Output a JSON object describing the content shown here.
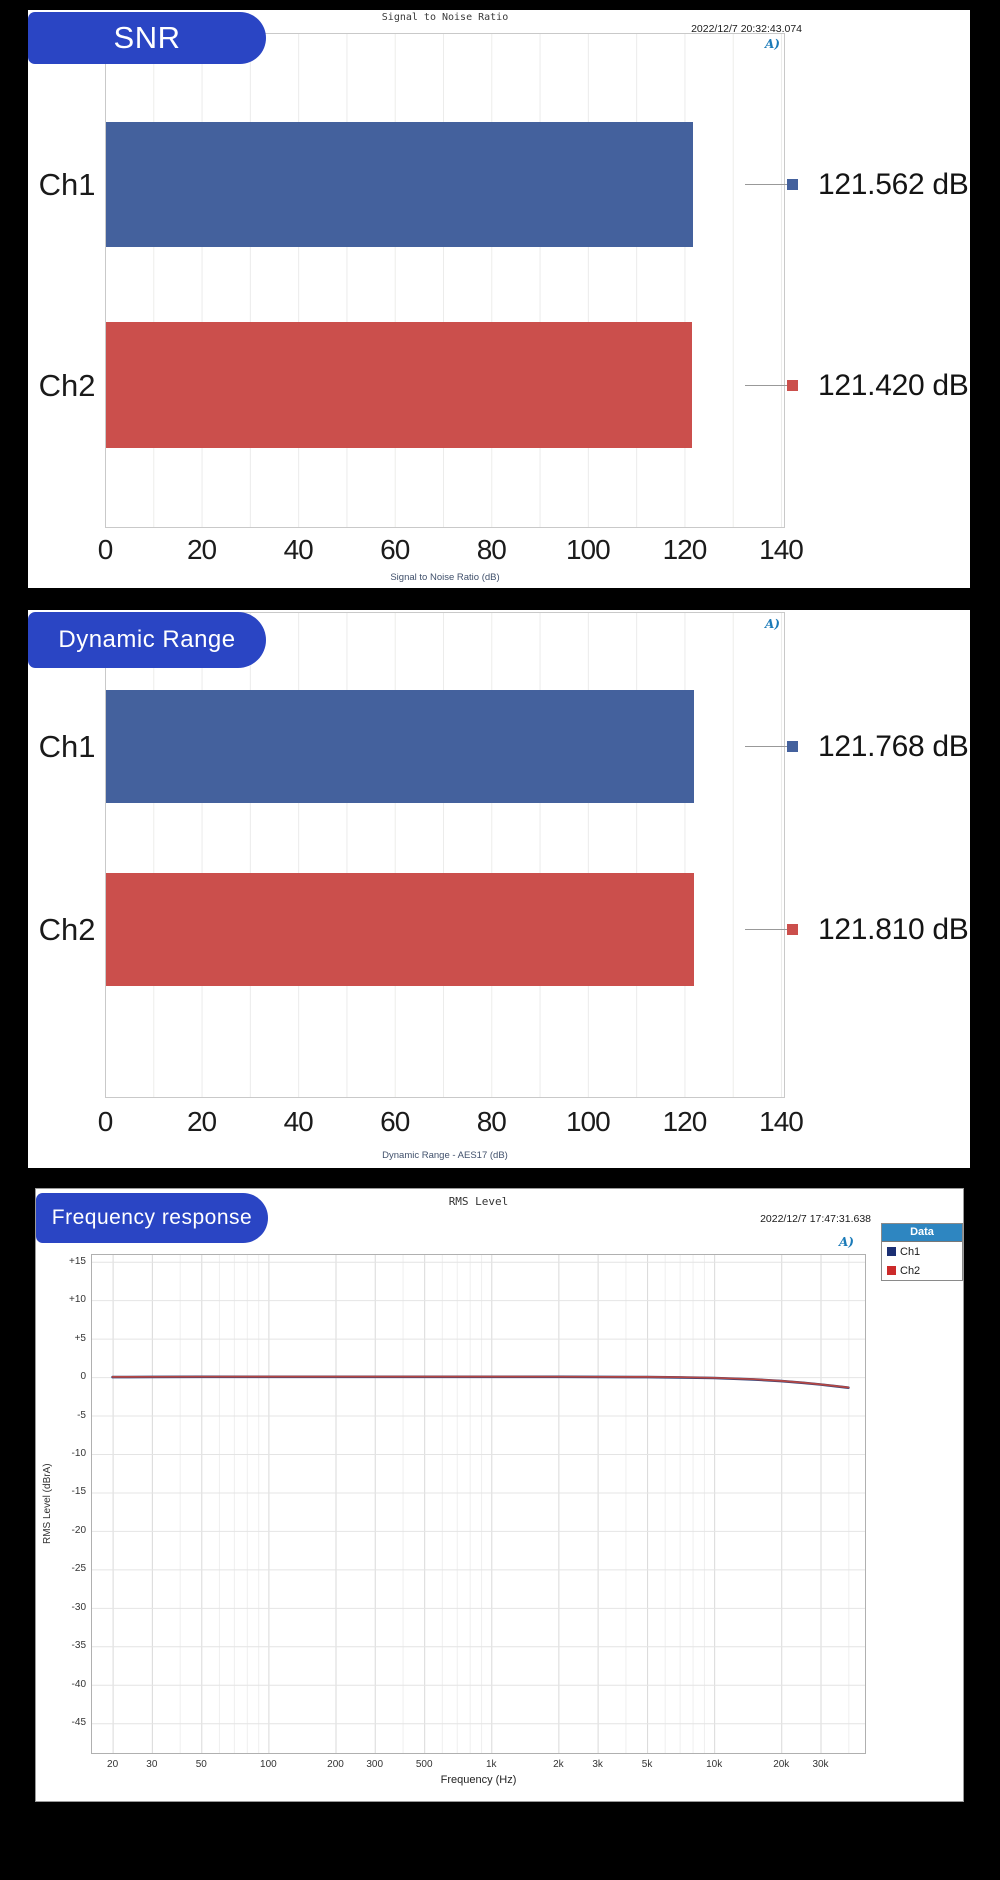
{
  "ui": {
    "logo_text": "A)"
  },
  "colors": {
    "page_background": "#000000",
    "panel_background": "#ffffff",
    "badge_blue": "#2a45c4",
    "bar_blue": "#44619d",
    "bar_red": "#cb4f4c",
    "legend_header_blue": "#2e86c1",
    "grid_line": "#ececeb",
    "plot_border": "#c9c9c9"
  },
  "chart_data": [
    {
      "id": "snr",
      "type": "bar",
      "badge": "SNR",
      "title": "Signal to Noise Ratio",
      "timestamp": "2022/12/7 20:32:43.074",
      "xlabel": "Signal to Noise Ratio (dB)",
      "categories": [
        "Ch1",
        "Ch2"
      ],
      "values": [
        121.562,
        121.42
      ],
      "value_labels": [
        "121.562 dB",
        "121.420 dB"
      ],
      "bar_colors": [
        "#44619d",
        "#cb4f4c"
      ],
      "xlim": [
        0,
        140
      ],
      "xticks": [
        0,
        20,
        40,
        60,
        80,
        100,
        120,
        140
      ],
      "grid_step": 10
    },
    {
      "id": "dynamic_range",
      "type": "bar",
      "badge": "Dynamic Range",
      "xlabel": "Dynamic Range - AES17 (dB)",
      "categories": [
        "Ch1",
        "Ch2"
      ],
      "values": [
        121.768,
        121.81
      ],
      "value_labels": [
        "121.768 dB",
        "121.810 dB"
      ],
      "bar_colors": [
        "#44619d",
        "#cb4f4c"
      ],
      "xlim": [
        0,
        140
      ],
      "xticks": [
        0,
        20,
        40,
        60,
        80,
        100,
        120,
        140
      ],
      "grid_step": 10
    },
    {
      "id": "frequency_response",
      "type": "line",
      "badge": "Frequency response",
      "title": "RMS Level",
      "timestamp": "2022/12/7 17:47:31.638",
      "xlabel": "Frequency (Hz)",
      "ylabel": "RMS Level (dBrA)",
      "x_scale": "log",
      "xlim": [
        16,
        48000
      ],
      "ylim": [
        -49,
        16
      ],
      "ygrid_step": 5,
      "yticks": [
        {
          "v": 15,
          "label": "+15"
        },
        {
          "v": 10,
          "label": "+10"
        },
        {
          "v": 5,
          "label": "+5"
        },
        {
          "v": 0,
          "label": "0"
        },
        {
          "v": -5,
          "label": "-5"
        },
        {
          "v": -10,
          "label": "-10"
        },
        {
          "v": -15,
          "label": "-15"
        },
        {
          "v": -20,
          "label": "-20"
        },
        {
          "v": -25,
          "label": "-25"
        },
        {
          "v": -30,
          "label": "-30"
        },
        {
          "v": -35,
          "label": "-35"
        },
        {
          "v": -40,
          "label": "-40"
        },
        {
          "v": -45,
          "label": "-45"
        }
      ],
      "xticks": [
        {
          "v": 20,
          "label": "20"
        },
        {
          "v": 30,
          "label": "30"
        },
        {
          "v": 50,
          "label": "50"
        },
        {
          "v": 100,
          "label": "100"
        },
        {
          "v": 200,
          "label": "200"
        },
        {
          "v": 300,
          "label": "300"
        },
        {
          "v": 500,
          "label": "500"
        },
        {
          "v": 1000,
          "label": "1k"
        },
        {
          "v": 2000,
          "label": "2k"
        },
        {
          "v": 3000,
          "label": "3k"
        },
        {
          "v": 5000,
          "label": "5k"
        },
        {
          "v": 10000,
          "label": "10k"
        },
        {
          "v": 20000,
          "label": "20k"
        },
        {
          "v": 30000,
          "label": "30k"
        }
      ],
      "legend": {
        "header": "Data",
        "items": [
          {
            "label": "Ch1",
            "color": "#1b2f73"
          },
          {
            "label": "Ch2",
            "color": "#cc2a2a"
          }
        ]
      },
      "series": [
        {
          "name": "Ch1",
          "color": "#334177",
          "width": 2.6,
          "points": [
            [
              20,
              0
            ],
            [
              30,
              0.02
            ],
            [
              50,
              0.03
            ],
            [
              100,
              0.04
            ],
            [
              200,
              0.04
            ],
            [
              500,
              0.04
            ],
            [
              1000,
              0.04
            ],
            [
              2000,
              0.03
            ],
            [
              3000,
              0.02
            ],
            [
              5000,
              0
            ],
            [
              7000,
              -0.04
            ],
            [
              10000,
              -0.12
            ],
            [
              15000,
              -0.3
            ],
            [
              20000,
              -0.52
            ],
            [
              25000,
              -0.74
            ],
            [
              30000,
              -0.97
            ],
            [
              35000,
              -1.18
            ],
            [
              40000,
              -1.38
            ]
          ]
        },
        {
          "name": "Ch2",
          "color": "#b64743",
          "width": 1.7,
          "points": [
            [
              20,
              0.02
            ],
            [
              30,
              0.04
            ],
            [
              50,
              0.05
            ],
            [
              100,
              0.06
            ],
            [
              200,
              0.06
            ],
            [
              500,
              0.06
            ],
            [
              1000,
              0.06
            ],
            [
              2000,
              0.05
            ],
            [
              3000,
              0.04
            ],
            [
              5000,
              0.02
            ],
            [
              7000,
              -0.02
            ],
            [
              10000,
              -0.1
            ],
            [
              15000,
              -0.28
            ],
            [
              20000,
              -0.5
            ],
            [
              25000,
              -0.72
            ],
            [
              30000,
              -0.95
            ],
            [
              35000,
              -1.16
            ],
            [
              40000,
              -1.36
            ]
          ]
        }
      ]
    }
  ]
}
